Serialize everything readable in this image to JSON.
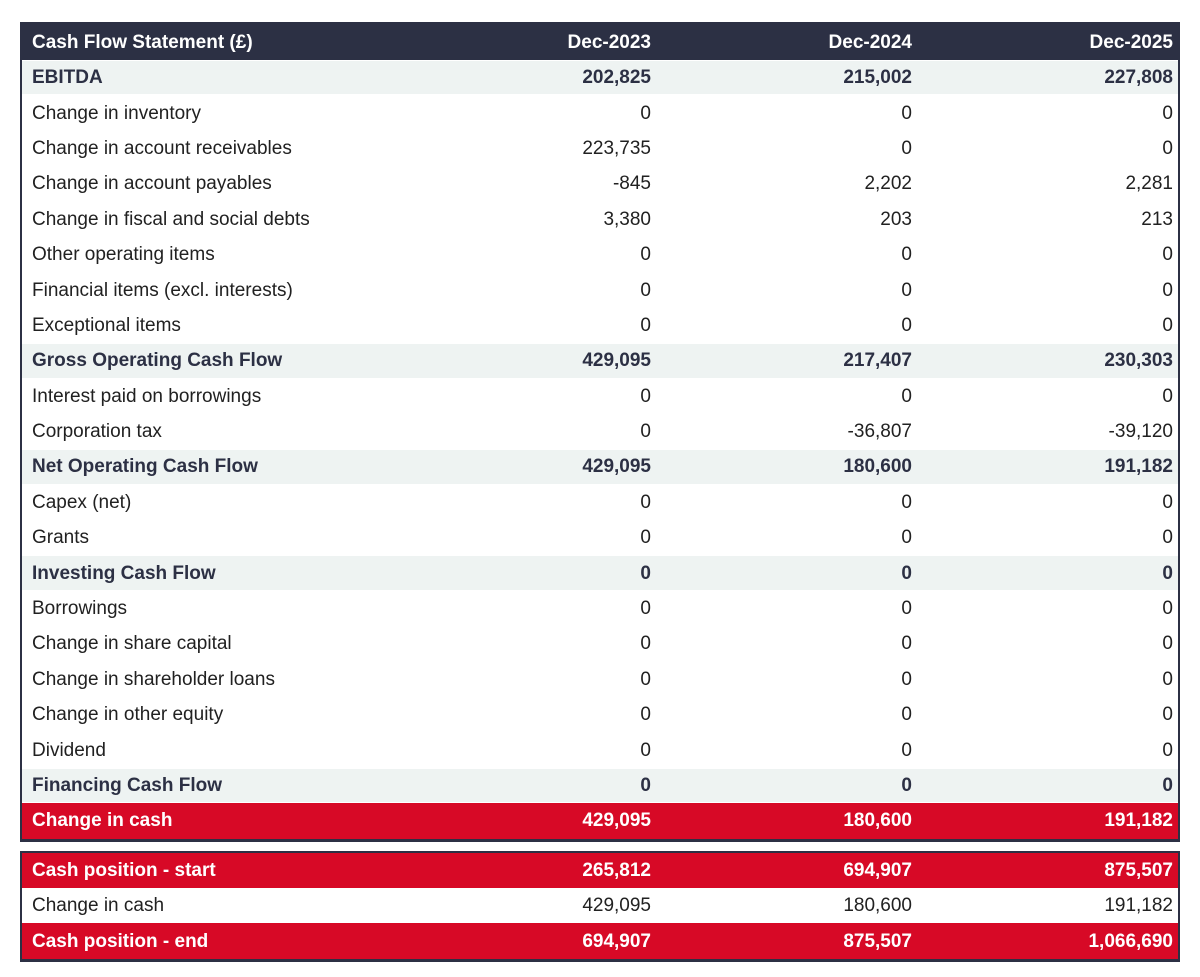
{
  "table": {
    "title": "Cash Flow Statement (£)",
    "columns": [
      "Dec-2023",
      "Dec-2024",
      "Dec-2025"
    ],
    "rows": [
      {
        "label": "EBITDA",
        "values": [
          "202,825",
          "215,002",
          "227,808"
        ],
        "style": "subtotal"
      },
      {
        "label": "Change in inventory",
        "values": [
          "0",
          "0",
          "0"
        ],
        "style": "normal"
      },
      {
        "label": "Change in account receivables",
        "values": [
          "223,735",
          "0",
          "0"
        ],
        "style": "normal"
      },
      {
        "label": "Change in account payables",
        "values": [
          "-845",
          "2,202",
          "2,281"
        ],
        "style": "normal"
      },
      {
        "label": "Change in fiscal and social debts",
        "values": [
          "3,380",
          "203",
          "213"
        ],
        "style": "normal"
      },
      {
        "label": "Other operating items",
        "values": [
          "0",
          "0",
          "0"
        ],
        "style": "normal"
      },
      {
        "label": "Financial items (excl. interests)",
        "values": [
          "0",
          "0",
          "0"
        ],
        "style": "normal"
      },
      {
        "label": "Exceptional items",
        "values": [
          "0",
          "0",
          "0"
        ],
        "style": "normal"
      },
      {
        "label": "Gross Operating Cash Flow",
        "values": [
          "429,095",
          "217,407",
          "230,303"
        ],
        "style": "subtotal"
      },
      {
        "label": "Interest paid on borrowings",
        "values": [
          "0",
          "0",
          "0"
        ],
        "style": "normal"
      },
      {
        "label": "Corporation tax",
        "values": [
          "0",
          "-36,807",
          "-39,120"
        ],
        "style": "normal"
      },
      {
        "label": "Net Operating Cash Flow",
        "values": [
          "429,095",
          "180,600",
          "191,182"
        ],
        "style": "subtotal"
      },
      {
        "label": "Capex (net)",
        "values": [
          "0",
          "0",
          "0"
        ],
        "style": "normal"
      },
      {
        "label": "Grants",
        "values": [
          "0",
          "0",
          "0"
        ],
        "style": "normal"
      },
      {
        "label": "Investing Cash Flow",
        "values": [
          "0",
          "0",
          "0"
        ],
        "style": "subtotal"
      },
      {
        "label": "Borrowings",
        "values": [
          "0",
          "0",
          "0"
        ],
        "style": "normal"
      },
      {
        "label": "Change in share capital",
        "values": [
          "0",
          "0",
          "0"
        ],
        "style": "normal"
      },
      {
        "label": "Change in shareholder loans",
        "values": [
          "0",
          "0",
          "0"
        ],
        "style": "normal"
      },
      {
        "label": "Change in other equity",
        "values": [
          "0",
          "0",
          "0"
        ],
        "style": "normal"
      },
      {
        "label": "Dividend",
        "values": [
          "0",
          "0",
          "0"
        ],
        "style": "normal"
      },
      {
        "label": "Financing Cash Flow",
        "values": [
          "0",
          "0",
          "0"
        ],
        "style": "subtotal"
      },
      {
        "label": "Change in cash",
        "values": [
          "429,095",
          "180,600",
          "191,182"
        ],
        "style": "highlight"
      }
    ],
    "summary_rows": [
      {
        "label": "Cash position - start",
        "values": [
          "265,812",
          "694,907",
          "875,507"
        ],
        "style": "highlight"
      },
      {
        "label": "Change in cash",
        "values": [
          "429,095",
          "180,600",
          "191,182"
        ],
        "style": "normal"
      },
      {
        "label": "Cash position - end",
        "values": [
          "694,907",
          "875,507",
          "1,066,690"
        ],
        "style": "highlight"
      }
    ],
    "colors": {
      "header_bg": "#2c3044",
      "subtotal_bg": "#eef3f2",
      "highlight_bg": "#d70926",
      "border": "#2c3044",
      "header_text": "#ffffff",
      "body_text": "#212121"
    }
  },
  "chart_data": {
    "type": "table",
    "title": "Cash Flow Statement (£)",
    "columns": [
      "Dec-2023",
      "Dec-2024",
      "Dec-2025"
    ],
    "rows": [
      [
        "EBITDA",
        202825,
        215002,
        227808
      ],
      [
        "Change in inventory",
        0,
        0,
        0
      ],
      [
        "Change in account receivables",
        223735,
        0,
        0
      ],
      [
        "Change in account payables",
        -845,
        2202,
        2281
      ],
      [
        "Change in fiscal and social debts",
        3380,
        203,
        213
      ],
      [
        "Other operating items",
        0,
        0,
        0
      ],
      [
        "Financial items (excl. interests)",
        0,
        0,
        0
      ],
      [
        "Exceptional items",
        0,
        0,
        0
      ],
      [
        "Gross Operating Cash Flow",
        429095,
        217407,
        230303
      ],
      [
        "Interest paid on borrowings",
        0,
        0,
        0
      ],
      [
        "Corporation tax",
        0,
        -36807,
        -39120
      ],
      [
        "Net Operating Cash Flow",
        429095,
        180600,
        191182
      ],
      [
        "Capex (net)",
        0,
        0,
        0
      ],
      [
        "Grants",
        0,
        0,
        0
      ],
      [
        "Investing Cash Flow",
        0,
        0,
        0
      ],
      [
        "Borrowings",
        0,
        0,
        0
      ],
      [
        "Change in share capital",
        0,
        0,
        0
      ],
      [
        "Change in shareholder loans",
        0,
        0,
        0
      ],
      [
        "Change in other equity",
        0,
        0,
        0
      ],
      [
        "Dividend",
        0,
        0,
        0
      ],
      [
        "Financing Cash Flow",
        0,
        0,
        0
      ],
      [
        "Change in cash",
        429095,
        180600,
        191182
      ],
      [
        "Cash position - start",
        265812,
        694907,
        875507
      ],
      [
        "Change in cash",
        429095,
        180600,
        191182
      ],
      [
        "Cash position - end",
        694907,
        875507,
        1066690
      ]
    ]
  }
}
